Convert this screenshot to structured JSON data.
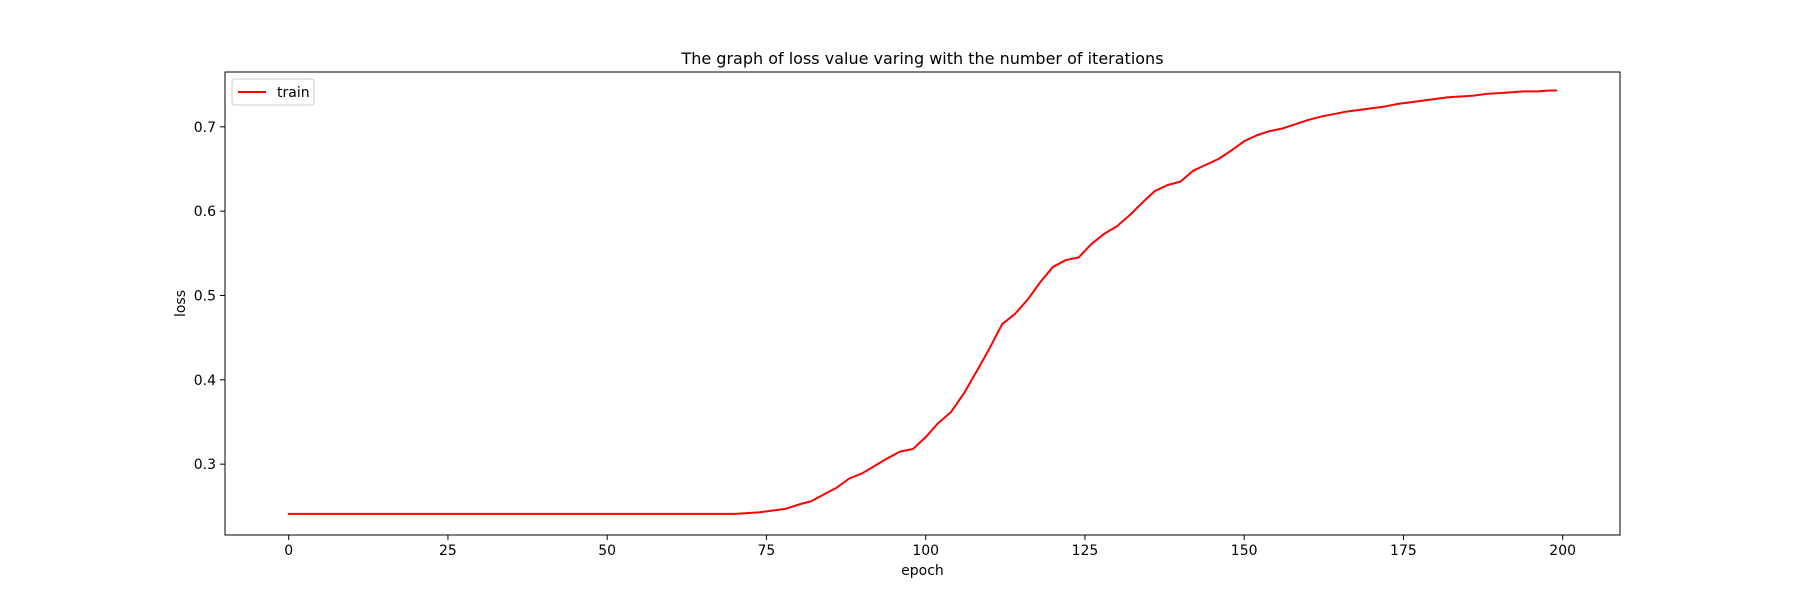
{
  "chart_data": {
    "type": "line",
    "title": "The graph of loss value varing with the number of iterations",
    "xlabel": "epoch",
    "ylabel": "loss",
    "xlim": [
      -10,
      209
    ],
    "ylim": [
      0.216,
      0.765
    ],
    "xticks": [
      0,
      25,
      50,
      75,
      100,
      125,
      150,
      175,
      200
    ],
    "yticks": [
      0.3,
      0.4,
      0.5,
      0.6,
      0.7
    ],
    "ytick_labels": [
      "0.3",
      "0.4",
      "0.5",
      "0.6",
      "0.7"
    ],
    "grid": false,
    "legend": {
      "position": "top-left",
      "entries": [
        "train"
      ]
    },
    "series": [
      {
        "name": "train",
        "color": "#ff0000",
        "x": [
          0,
          10,
          20,
          30,
          40,
          50,
          60,
          70,
          72,
          74,
          76,
          78,
          80,
          82,
          84,
          86,
          88,
          90,
          92,
          94,
          96,
          98,
          100,
          102,
          104,
          106,
          108,
          110,
          112,
          114,
          116,
          118,
          120,
          122,
          124,
          126,
          128,
          130,
          132,
          134,
          136,
          138,
          140,
          142,
          144,
          146,
          148,
          150,
          152,
          154,
          156,
          158,
          160,
          162,
          164,
          166,
          168,
          170,
          172,
          174,
          176,
          178,
          180,
          182,
          184,
          186,
          188,
          190,
          192,
          194,
          196,
          198,
          199
        ],
        "y": [
          0.241,
          0.241,
          0.241,
          0.241,
          0.241,
          0.241,
          0.241,
          0.241,
          0.242,
          0.243,
          0.245,
          0.247,
          0.252,
          0.256,
          0.264,
          0.272,
          0.283,
          0.289,
          0.298,
          0.307,
          0.315,
          0.318,
          0.332,
          0.349,
          0.362,
          0.384,
          0.41,
          0.437,
          0.466,
          0.478,
          0.495,
          0.516,
          0.534,
          0.542,
          0.545,
          0.561,
          0.573,
          0.582,
          0.595,
          0.61,
          0.624,
          0.631,
          0.635,
          0.648,
          0.655,
          0.662,
          0.672,
          0.683,
          0.69,
          0.695,
          0.698,
          0.703,
          0.708,
          0.712,
          0.715,
          0.718,
          0.72,
          0.722,
          0.724,
          0.727,
          0.729,
          0.731,
          0.733,
          0.735,
          0.736,
          0.737,
          0.739,
          0.74,
          0.741,
          0.742,
          0.742,
          0.743,
          0.743
        ]
      }
    ]
  }
}
